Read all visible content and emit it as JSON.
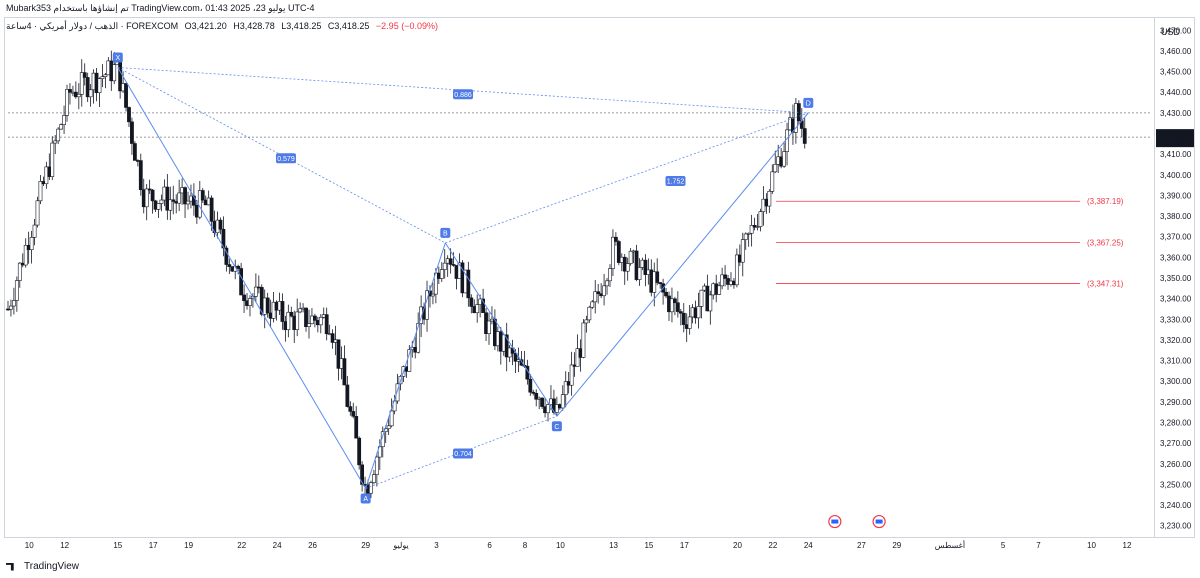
{
  "header": {
    "meta_text": "Mubark353 تم إنشاؤها باستخدام TradingView.com، يوليو 23، 2025 01:43 UTC-4"
  },
  "legend": {
    "symbol": "الذهب / دولار أمريكي · 4ساعة · FOREXCOM",
    "open": "O3,421.20",
    "high": "H3,428.78",
    "low": "L3,418.25",
    "close": "C3,418.25",
    "change": "−2.95 (−0.09%)"
  },
  "price_axis": {
    "unit": "USD",
    "current_price": "3,418.25",
    "countdown": "16:09"
  },
  "footer": {
    "brand": "TradingView"
  },
  "colors": {
    "up": "#131722",
    "down": "#131722",
    "pattern": "#5b8def",
    "target": "#f23645",
    "label_bg": "#4f7be8"
  },
  "chart_data": {
    "type": "candlestick",
    "ylim": [
      3225,
      3475
    ],
    "y_ticks": [
      3230,
      3240,
      3250,
      3260,
      3270,
      3280,
      3290,
      3300,
      3310,
      3320,
      3330,
      3340,
      3350,
      3360,
      3370,
      3380,
      3390,
      3400,
      3410,
      3420,
      3430,
      3440,
      3450,
      3460,
      3470
    ],
    "y_tick_labels": [
      "3,230.00",
      "3,240.00",
      "3,250.00",
      "3,260.00",
      "3,270.00",
      "3,280.00",
      "3,290.00",
      "3,300.00",
      "3,310.00",
      "3,320.00",
      "3,330.00",
      "3,340.00",
      "3,350.00",
      "3,360.00",
      "3,370.00",
      "3,380.00",
      "3,390.00",
      "3,400.00",
      "3,410.00",
      "3,420.00",
      "3,430.00",
      "3,440.00",
      "3,450.00",
      "3,460.00",
      "3,470.00"
    ],
    "x_ticks": [
      {
        "label": "10",
        "x": 10
      },
      {
        "label": "12",
        "x": 12
      },
      {
        "label": "15",
        "x": 15
      },
      {
        "label": "17",
        "x": 17
      },
      {
        "label": "19",
        "x": 19
      },
      {
        "label": "22",
        "x": 22
      },
      {
        "label": "24",
        "x": 24
      },
      {
        "label": "26",
        "x": 26
      },
      {
        "label": "29",
        "x": 29
      },
      {
        "label": "يوليو",
        "x": 31
      },
      {
        "label": "3",
        "x": 33
      },
      {
        "label": "6",
        "x": 36
      },
      {
        "label": "8",
        "x": 38
      },
      {
        "label": "10",
        "x": 40
      },
      {
        "label": "13",
        "x": 43
      },
      {
        "label": "15",
        "x": 45
      },
      {
        "label": "17",
        "x": 47
      },
      {
        "label": "20",
        "x": 50
      },
      {
        "label": "22",
        "x": 52
      },
      {
        "label": "24",
        "x": 54
      },
      {
        "label": "27",
        "x": 57
      },
      {
        "label": "29",
        "x": 59
      },
      {
        "label": "أغسطس",
        "x": 62
      },
      {
        "label": "5",
        "x": 65
      },
      {
        "label": "7",
        "x": 67
      },
      {
        "label": "10",
        "x": 70
      },
      {
        "label": "12",
        "x": 72
      }
    ],
    "x_range": [
      8.8,
      73.3
    ],
    "anchors": [
      {
        "x": 8.8,
        "y": 3335
      },
      {
        "x": 12.3,
        "y": 3440
      },
      {
        "x": 15,
        "y": 3452
      },
      {
        "x": 16.5,
        "y": 3390
      },
      {
        "x": 20,
        "y": 3385
      },
      {
        "x": 22,
        "y": 3345
      },
      {
        "x": 24.5,
        "y": 3330
      },
      {
        "x": 27,
        "y": 3330
      },
      {
        "x": 29,
        "y": 3248
      },
      {
        "x": 31,
        "y": 3300
      },
      {
        "x": 33.5,
        "y": 3365
      },
      {
        "x": 36,
        "y": 3325
      },
      {
        "x": 39.8,
        "y": 3283
      },
      {
        "x": 43,
        "y": 3365
      },
      {
        "x": 45,
        "y": 3350
      },
      {
        "x": 47,
        "y": 3330
      },
      {
        "x": 50,
        "y": 3355
      },
      {
        "x": 52,
        "y": 3400
      },
      {
        "x": 53.3,
        "y": 3430
      },
      {
        "x": 53.9,
        "y": 3418.25
      }
    ],
    "pattern_points": [
      {
        "name": "X",
        "x": 15,
        "y": 3452
      },
      {
        "name": "A",
        "x": 29,
        "y": 3248
      },
      {
        "name": "B",
        "x": 33.5,
        "y": 3367
      },
      {
        "name": "C",
        "x": 39.8,
        "y": 3283
      },
      {
        "name": "D",
        "x": 54,
        "y": 3430
      }
    ],
    "ratios": [
      {
        "label": "0.886",
        "x": 34.5,
        "y": 3439
      },
      {
        "label": "0.579",
        "x": 24.5,
        "y": 3408
      },
      {
        "label": "1.752",
        "x": 46.5,
        "y": 3397
      },
      {
        "label": "0.704",
        "x": 34.5,
        "y": 3265
      }
    ],
    "targets": [
      {
        "label": "(3,387.19)",
        "value": 3387.19
      },
      {
        "label": "(3,367.25)",
        "value": 3367.25
      },
      {
        "label": "(3,347.31)",
        "value": 3347.31
      }
    ],
    "hlines": [
      3430,
      3418.25
    ],
    "event_markers": [
      {
        "x": 55.5,
        "y": 3232
      },
      {
        "x": 58,
        "y": 3232
      }
    ]
  }
}
